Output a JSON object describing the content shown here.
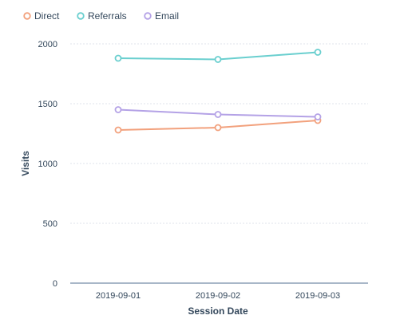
{
  "chart_data": {
    "type": "line",
    "title": "",
    "xlabel": "Session Date",
    "ylabel": "Visits",
    "x": [
      "2019-09-01",
      "2019-09-02",
      "2019-09-03"
    ],
    "ylim": [
      0,
      2000
    ],
    "yticks": [
      "0",
      "500",
      "1000",
      "1500",
      "2000"
    ],
    "grid": true,
    "legend_position": "top-left",
    "series": [
      {
        "name": "Direct",
        "color": "#f2a17d",
        "values": [
          1280,
          1300,
          1360
        ]
      },
      {
        "name": "Referrals",
        "color": "#6acfcf",
        "values": [
          1880,
          1870,
          1930
        ]
      },
      {
        "name": "Email",
        "color": "#b4a2e6",
        "values": [
          1450,
          1410,
          1390
        ]
      }
    ]
  }
}
